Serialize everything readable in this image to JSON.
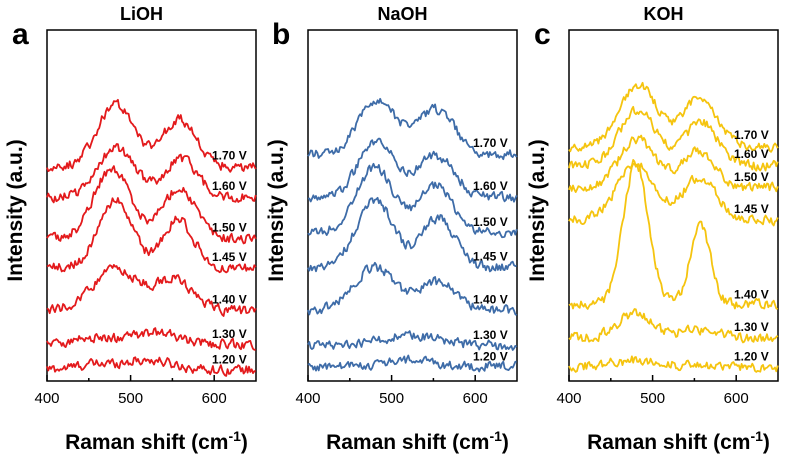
{
  "chart_data": [
    {
      "type": "line",
      "panel_letter": "a",
      "title": "LiOH",
      "xlabel": "Raman shift (cm",
      "xlabel_sup": "-1",
      "xlabel_close": ")",
      "ylabel": "Intensity (a.u.)",
      "xlim": [
        400,
        650
      ],
      "ylim": [
        0,
        11
      ],
      "yticks_shown": false,
      "xticks": [
        400,
        500,
        600
      ],
      "color": "#e31a1c",
      "series": [
        {
          "name": "1.20 V",
          "baseline": 0.35,
          "peaks": [
            [
              520,
              30,
              0.3
            ],
            [
              455,
              25,
              0.15
            ]
          ]
        },
        {
          "name": "1.30 V",
          "baseline": 1.15,
          "peaks": [
            [
              532,
              25,
              0.35
            ],
            [
              460,
              30,
              0.2
            ]
          ]
        },
        {
          "name": "1.40 V",
          "baseline": 2.2,
          "peaks": [
            [
              482,
              28,
              1.3
            ],
            [
              553,
              22,
              0.95
            ]
          ]
        },
        {
          "name": "1.45 V",
          "baseline": 3.55,
          "peaks": [
            [
              482,
              20,
              2.1
            ],
            [
              557,
              18,
              1.5
            ]
          ]
        },
        {
          "name": "1.50 V",
          "baseline": 4.45,
          "peaks": [
            [
              478,
              22,
              2.2
            ],
            [
              558,
              20,
              1.6
            ]
          ]
        },
        {
          "name": "1.60 V",
          "baseline": 5.75,
          "peaks": [
            [
              483,
              22,
              1.55
            ],
            [
              560,
              20,
              1.2
            ]
          ]
        },
        {
          "name": "1.70 V",
          "baseline": 6.7,
          "peaks": [
            [
              482,
              22,
              1.95
            ],
            [
              558,
              20,
              1.5
            ]
          ]
        }
      ]
    },
    {
      "type": "line",
      "panel_letter": "b",
      "title": "NaOH",
      "xlabel": "Raman shift (cm",
      "xlabel_sup": "-1",
      "xlabel_close": ")",
      "ylabel": "Intensity (a.u.)",
      "xlim": [
        400,
        650
      ],
      "ylim": [
        0,
        11
      ],
      "yticks_shown": false,
      "xticks": [
        400,
        500,
        600
      ],
      "color": "#3e6ca8",
      "series": [
        {
          "name": "1.20 V",
          "baseline": 0.45,
          "peaks": [
            [
              522,
              30,
              0.2
            ]
          ]
        },
        {
          "name": "1.30 V",
          "baseline": 1.1,
          "peaks": [
            [
              520,
              40,
              0.3
            ]
          ]
        },
        {
          "name": "1.40 V",
          "baseline": 2.2,
          "peaks": [
            [
              480,
              25,
              1.35
            ],
            [
              556,
              22,
              0.9
            ]
          ]
        },
        {
          "name": "1.45 V",
          "baseline": 3.55,
          "peaks": [
            [
              480,
              22,
              2.15
            ],
            [
              556,
              20,
              1.55
            ]
          ]
        },
        {
          "name": "1.50 V",
          "baseline": 4.65,
          "peaks": [
            [
              480,
              22,
              2.05
            ],
            [
              553,
              20,
              1.45
            ]
          ]
        },
        {
          "name": "1.60 V",
          "baseline": 5.75,
          "peaks": [
            [
              482,
              22,
              1.75
            ],
            [
              553,
              22,
              1.3
            ]
          ]
        },
        {
          "name": "1.70 V",
          "baseline": 7.1,
          "peaks": [
            [
              483,
              22,
              1.75
            ],
            [
              553,
              22,
              1.4
            ]
          ]
        }
      ]
    },
    {
      "type": "line",
      "panel_letter": "c",
      "title": "KOH",
      "xlabel": "Raman shift (cm",
      "xlabel_sup": "-1",
      "xlabel_close": ")",
      "ylabel": "Intensity (a.u.)",
      "xlim": [
        400,
        650
      ],
      "ylim": [
        0,
        11
      ],
      "yticks_shown": false,
      "xticks": [
        400,
        500,
        600
      ],
      "color": "#f5c40f",
      "series": [
        {
          "name": "1.20 V",
          "baseline": 0.45,
          "peaks": [
            [
              480,
              30,
              0.2
            ]
          ]
        },
        {
          "name": "1.30 V",
          "baseline": 1.35,
          "peaks": [
            [
              478,
              20,
              0.75
            ],
            [
              555,
              25,
              0.25
            ]
          ]
        },
        {
          "name": "1.40 V",
          "baseline": 2.4,
          "peaks": [
            [
              480,
              15,
              4.4
            ],
            [
              557,
              12,
              2.45
            ]
          ]
        },
        {
          "name": "1.45 V",
          "baseline": 5.05,
          "peaks": [
            [
              480,
              22,
              1.8
            ],
            [
              556,
              20,
              1.3
            ]
          ]
        },
        {
          "name": "1.50 V",
          "baseline": 6.05,
          "peaks": [
            [
              482,
              22,
              1.5
            ],
            [
              555,
              20,
              1.15
            ]
          ]
        },
        {
          "name": "1.60 V",
          "baseline": 6.75,
          "peaks": [
            [
              482,
              22,
              1.75
            ],
            [
              558,
              20,
              1.35
            ]
          ]
        },
        {
          "name": "1.70 V",
          "baseline": 7.35,
          "peaks": [
            [
              483,
              22,
              1.95
            ],
            [
              557,
              20,
              1.55
            ]
          ]
        }
      ]
    }
  ]
}
